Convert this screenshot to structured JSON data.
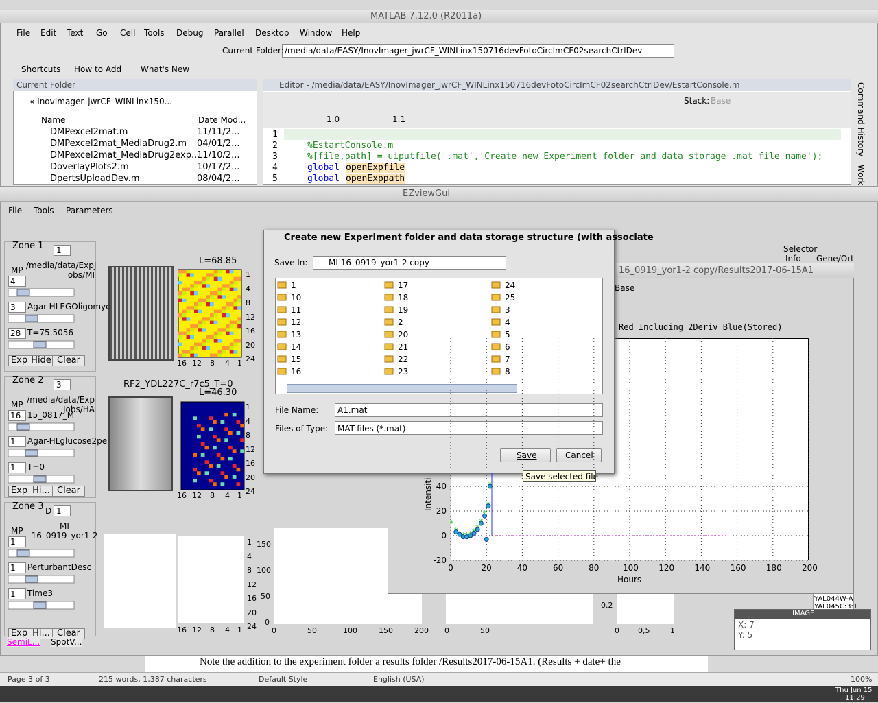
{
  "matlab": {
    "title": "MATLAB  7.12.0 (R2011a)",
    "menu": [
      "File",
      "Edit",
      "Text",
      "Go",
      "Cell",
      "Tools",
      "Debug",
      "Parallel",
      "Desktop",
      "Window",
      "Help"
    ],
    "folder_label": "Current Folder:",
    "folder_path": "/media/data/EASY/InovImager_jwrCF_WINLinx150716devFotoCircImCF02searchCtrlDev",
    "shortcuts": [
      "Shortcuts",
      "How to Add",
      "What's New"
    ],
    "folder_panel": {
      "title": "Current Folder",
      "path": "« InovImager_jwrCF_WINLinx150...",
      "columns": [
        "Name",
        "Date Mod..."
      ],
      "files": [
        {
          "name": "DMPexcel2mat.m",
          "date": "11/11/2..."
        },
        {
          "name": "DMPexcel2mat_MediaDrug2.m",
          "date": "04/01/2..."
        },
        {
          "name": "DMPexcel2mat_MediaDrug2exp...",
          "date": "11/10/2..."
        },
        {
          "name": "DoverlayPlots2.m",
          "date": "10/17/2..."
        },
        {
          "name": "DpertsUploadDev.m",
          "date": "08/04/2..."
        }
      ]
    },
    "editor": {
      "title": "Editor - /media/data/EASY/InovImager_jwrCF_WINLinx150716devFotoCircImCF02searchCtrlDev/EstartConsole.m",
      "stack_label": "Stack:",
      "stack": "Base",
      "step_a": "1.0",
      "step_b": "1.1",
      "line_numbers": [
        1,
        2,
        3,
        4,
        5
      ],
      "code": [
        {
          "text": "%EstartConsole.m"
        },
        {
          "text": "%[file,path] = uiputfile('.mat','Create new Experiment folder and data storage .mat file name');"
        },
        {
          "keyword": "global",
          "name": "openExpfile"
        },
        {
          "keyword": "global",
          "name": "openExppath"
        }
      ]
    },
    "side_tabs": [
      "Command History",
      "Work"
    ]
  },
  "ezview": {
    "title": "EZviewGui",
    "menu": [
      "File",
      "Tools",
      "Parameters"
    ],
    "zones": [
      {
        "label": "Zone 1",
        "number": 1,
        "mp": "MP",
        "path": [
          "/media/data/ExpJ",
          "obs/MI"
        ],
        "rows": [
          {
            "box": 4
          },
          {
            "box": 3,
            "text": "Agar-HLEGOligomyc"
          },
          {
            "box": 28,
            "text": "T=75.5056"
          }
        ],
        "buttons": [
          "Exp",
          "Hide",
          "Clear"
        ],
        "plot_label": "L=68.85_"
      },
      {
        "label": "Zone 2",
        "number": 3,
        "mp": "MP",
        "path": [
          "/media/data/Exp",
          "Jobs/HA"
        ],
        "rows": [
          {
            "box": 16,
            "text": "15_0817_M"
          },
          {
            "box": 1,
            "text": "Agar-HLglucose2pe"
          },
          {
            "box": 1,
            "text": "T=0"
          }
        ],
        "buttons": [
          "Exp",
          "Hi...",
          "Clear"
        ],
        "image_title": "RF2_YDL227C_r7c5_T=0",
        "plot_label": "L=46.30"
      },
      {
        "label": "Zone 3",
        "tag": "D",
        "number": 1,
        "mp": "MP",
        "path": [
          "MI",
          "16_0919_yor1-2"
        ],
        "rows": [
          {
            "box": 1
          },
          {
            "box": 1,
            "text": "PerturbantDesc"
          },
          {
            "box": 1,
            "text": "Time3"
          }
        ],
        "buttons": [
          "Exp",
          "Hi...",
          "Clear"
        ]
      }
    ],
    "map_yticks": [
      1,
      4,
      8,
      12,
      16,
      20,
      24
    ],
    "map_xticks": [
      16,
      12,
      8,
      4,
      1
    ],
    "small_xticks": [
      0,
      50,
      100,
      150,
      200
    ],
    "small_yticks": [
      150,
      100,
      50,
      0
    ],
    "ratio_ytick": "0.2",
    "ratio_xticks": [
      "0",
      "0,5",
      "1"
    ],
    "bottom_buttons": [
      "SemiL...",
      "SpotV..."
    ],
    "selector": {
      "title": "Selector",
      "tabs": [
        "Info",
        "Gene/Ort"
      ],
      "items": [
        "YAL044W-A",
        "YAL045C:3:1"
      ]
    },
    "image_panel": {
      "title": "IMAGE",
      "x": "X: 7",
      "y": "Y: 5"
    }
  },
  "plot_window": {
    "title": "16_0919_yor1-2 copy/Results2017-06-15A1",
    "workspace": "Base",
    "subtitle": "Red Including 2Deriv Blue(Stored)",
    "y_label": "Intensiti",
    "x_label": "Hours",
    "xlim": [
      0,
      200
    ],
    "ylim": [
      -20,
      160
    ],
    "xticks": [
      0,
      20,
      40,
      60,
      80,
      100,
      120,
      140,
      160,
      180,
      200
    ],
    "yticks": [
      -20,
      0,
      20,
      40
    ],
    "x": [
      0.5,
      3,
      5,
      7,
      9,
      11,
      13,
      15,
      17,
      19,
      20,
      21,
      22
    ],
    "series": [
      {
        "name": "green",
        "color": "#22dd22",
        "values": [
          10,
          4,
          1,
          0,
          0,
          1,
          3,
          6,
          11,
          18,
          null,
          25,
          41
        ]
      },
      {
        "name": "blue",
        "color": "#2233aa",
        "values": [
          null,
          3,
          1,
          -1,
          -1,
          0,
          2,
          5,
          10,
          16,
          -3,
          24,
          40
        ]
      }
    ]
  },
  "dialog": {
    "title": "Create new Experiment folder and data storage structure (with associate",
    "save_in_label": "Save In:",
    "save_in": "MI 16_0919_yor1-2 copy",
    "folders": [
      "1",
      "10",
      "11",
      "12",
      "13",
      "14",
      "15",
      "16",
      "17",
      "18",
      "19",
      "2",
      "20",
      "21",
      "22",
      "23",
      "24",
      "25",
      "3",
      "4",
      "5",
      "6",
      "7",
      "8"
    ],
    "file_name_label": "File Name:",
    "file_name": "A1.mat",
    "type_label": "Files of Type:",
    "type": "MAT-files (*.mat)",
    "save": "Save",
    "cancel": "Cancel",
    "tooltip": "Save selected file"
  },
  "word": {
    "text": "Note the addition to the experiment folder a results folder  /Results2017-06-15A1.  (Results + date+ the",
    "status": [
      "Page 3 of 3",
      "215 words, 1,387 characters",
      "Default Style",
      "English (USA)",
      "100%"
    ]
  },
  "taskbar": {
    "day": "Thu Jun 15",
    "time": "11:29"
  }
}
